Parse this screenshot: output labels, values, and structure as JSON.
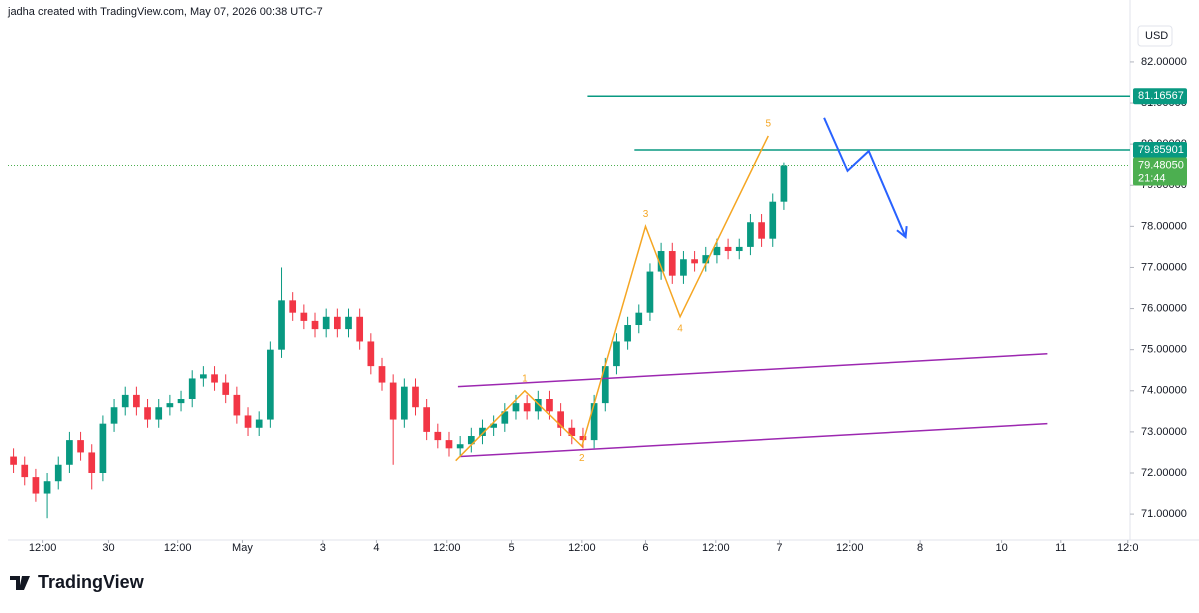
{
  "chart_data": {
    "type": "candlestick",
    "attribution": "jadha created with TradingView.com, May 07, 2026 00:38 UTC-7",
    "currency": "USD",
    "logo_text": "TradingView",
    "up_color": "#089981",
    "down_color": "#f23645",
    "open": [
      72.4,
      72.2,
      71.9,
      71.5,
      71.8,
      72.2,
      72.8,
      72.5,
      72.0,
      73.2,
      73.6,
      73.9,
      73.6,
      73.3,
      73.6,
      73.7,
      73.8,
      74.3,
      74.4,
      74.2,
      73.9,
      73.4,
      73.1,
      73.3,
      75.0,
      76.2,
      75.9,
      75.7,
      75.5,
      75.8,
      75.5,
      75.8,
      75.2,
      74.6,
      74.2,
      73.3,
      74.1,
      73.6,
      73.0,
      72.8,
      72.6,
      72.7,
      72.9,
      73.1,
      73.2,
      73.5,
      73.7,
      73.5,
      73.8,
      73.5,
      73.1,
      72.9,
      72.8,
      73.7,
      74.6,
      75.2,
      75.6,
      75.9,
      76.9,
      77.4,
      76.8,
      77.2,
      77.1,
      77.3,
      77.5,
      77.4,
      77.5,
      78.1,
      77.7,
      78.6
    ],
    "high": [
      72.6,
      72.4,
      72.1,
      72.0,
      72.4,
      73.0,
      73.0,
      72.7,
      73.4,
      73.8,
      74.1,
      74.1,
      73.8,
      73.8,
      73.9,
      74.0,
      74.5,
      74.6,
      74.6,
      74.4,
      74.1,
      73.6,
      73.5,
      75.2,
      77.0,
      76.4,
      76.1,
      75.9,
      76.0,
      76.0,
      76.0,
      76.0,
      75.4,
      74.8,
      74.4,
      74.3,
      74.3,
      73.8,
      73.2,
      73.0,
      72.9,
      73.1,
      73.3,
      73.4,
      73.7,
      73.9,
      73.9,
      74.0,
      74.0,
      73.7,
      73.3,
      73.1,
      73.9,
      74.8,
      75.4,
      75.8,
      76.1,
      77.1,
      77.6,
      77.6,
      77.4,
      77.4,
      77.5,
      77.7,
      77.7,
      77.7,
      78.3,
      78.3,
      78.8,
      79.55
    ],
    "low": [
      72.0,
      71.7,
      71.3,
      70.9,
      71.6,
      72.0,
      72.3,
      71.6,
      71.8,
      73.0,
      73.4,
      73.4,
      73.1,
      73.1,
      73.4,
      73.5,
      73.6,
      74.1,
      74.0,
      73.7,
      73.2,
      72.9,
      72.9,
      73.1,
      74.8,
      75.7,
      75.5,
      75.3,
      75.3,
      75.3,
      75.3,
      75.0,
      74.4,
      74.0,
      72.2,
      73.1,
      73.4,
      72.8,
      72.6,
      72.4,
      72.4,
      72.5,
      72.7,
      72.9,
      73.0,
      73.3,
      73.3,
      73.3,
      73.3,
      72.9,
      72.7,
      72.6,
      72.6,
      73.5,
      74.4,
      75.0,
      75.4,
      75.7,
      76.7,
      76.6,
      76.6,
      76.9,
      76.9,
      77.1,
      77.2,
      77.2,
      77.3,
      77.5,
      77.5,
      78.4
    ],
    "close": [
      72.2,
      71.9,
      71.5,
      71.8,
      72.2,
      72.8,
      72.5,
      72.0,
      73.2,
      73.6,
      73.9,
      73.6,
      73.3,
      73.6,
      73.7,
      73.8,
      74.3,
      74.4,
      74.2,
      73.9,
      73.4,
      73.1,
      73.3,
      75.0,
      76.2,
      75.9,
      75.7,
      75.5,
      75.8,
      75.5,
      75.8,
      75.2,
      74.6,
      74.2,
      73.3,
      74.1,
      73.6,
      73.0,
      72.8,
      72.6,
      72.7,
      72.9,
      73.1,
      73.2,
      73.5,
      73.7,
      73.5,
      73.8,
      73.5,
      73.1,
      72.9,
      72.8,
      73.7,
      74.6,
      75.2,
      75.6,
      75.9,
      76.9,
      77.4,
      76.8,
      77.2,
      77.1,
      77.3,
      77.5,
      77.4,
      77.5,
      78.1,
      77.7,
      78.6,
      79.4805
    ],
    "xlim": [
      -0.5,
      100
    ],
    "xticks": [
      {
        "value": 2.6,
        "label": "12:00"
      },
      {
        "value": 8.5,
        "label": "30"
      },
      {
        "value": 14.7,
        "label": "12:00"
      },
      {
        "value": 20.5,
        "label": "May"
      },
      {
        "value": 27.7,
        "label": "3"
      },
      {
        "value": 32.5,
        "label": "4"
      },
      {
        "value": 38.8,
        "label": "12:00"
      },
      {
        "value": 44.6,
        "label": "5"
      },
      {
        "value": 50.9,
        "label": "12:00"
      },
      {
        "value": 56.6,
        "label": "6"
      },
      {
        "value": 62.9,
        "label": "12:00"
      },
      {
        "value": 68.6,
        "label": "7"
      },
      {
        "value": 74.9,
        "label": "12:00"
      },
      {
        "value": 81.2,
        "label": "8"
      },
      {
        "value": 88.5,
        "label": "10"
      },
      {
        "value": 93.8,
        "label": "11"
      },
      {
        "value": 99.8,
        "label": "12:0"
      }
    ],
    "ylim": [
      70.37,
      83.02
    ],
    "yticks": [
      {
        "value": 71,
        "label": "71.00000"
      },
      {
        "value": 72,
        "label": "72.00000"
      },
      {
        "value": 73,
        "label": "73.00000"
      },
      {
        "value": 74,
        "label": "74.00000"
      },
      {
        "value": 75,
        "label": "75.00000"
      },
      {
        "value": 76,
        "label": "76.00000"
      },
      {
        "value": 77,
        "label": "77.00000"
      },
      {
        "value": 78,
        "label": "78.00000"
      },
      {
        "value": 79,
        "label": "79.00000"
      },
      {
        "value": 80,
        "label": "80.00000"
      },
      {
        "value": 81,
        "label": "81.00000"
      },
      {
        "value": 82,
        "label": "82.00000"
      }
    ],
    "levels": [
      {
        "value": 81.16567,
        "start": 51.4,
        "color": "#089981"
      },
      {
        "value": 79.85901,
        "start": 55.6,
        "color": "#089981"
      }
    ],
    "last_price": {
      "value": 79.4805,
      "label": "79.48050",
      "countdown": "21:44",
      "color": "#4caf50"
    },
    "channel": {
      "color": "#9c27b0",
      "lines": [
        {
          "x": [
            39.8,
            92.6
          ],
          "y": [
            74.1,
            74.9
          ]
        },
        {
          "x": [
            40.0,
            92.6
          ],
          "y": [
            72.4,
            73.2
          ]
        }
      ]
    },
    "wave": {
      "color": "#f5a623",
      "x": [
        39.6,
        45.8,
        50.9,
        56.6,
        59.7,
        67.6
      ],
      "y": [
        72.3,
        74.0,
        72.65,
        78.0,
        75.8,
        80.2
      ],
      "labels": [
        "1",
        "2",
        "3",
        "4",
        "5"
      ]
    },
    "projection": {
      "color": "#2962ff",
      "x": [
        72.6,
        74.7,
        76.6,
        79.9
      ],
      "y": [
        80.64,
        79.35,
        79.83,
        77.74
      ]
    }
  }
}
